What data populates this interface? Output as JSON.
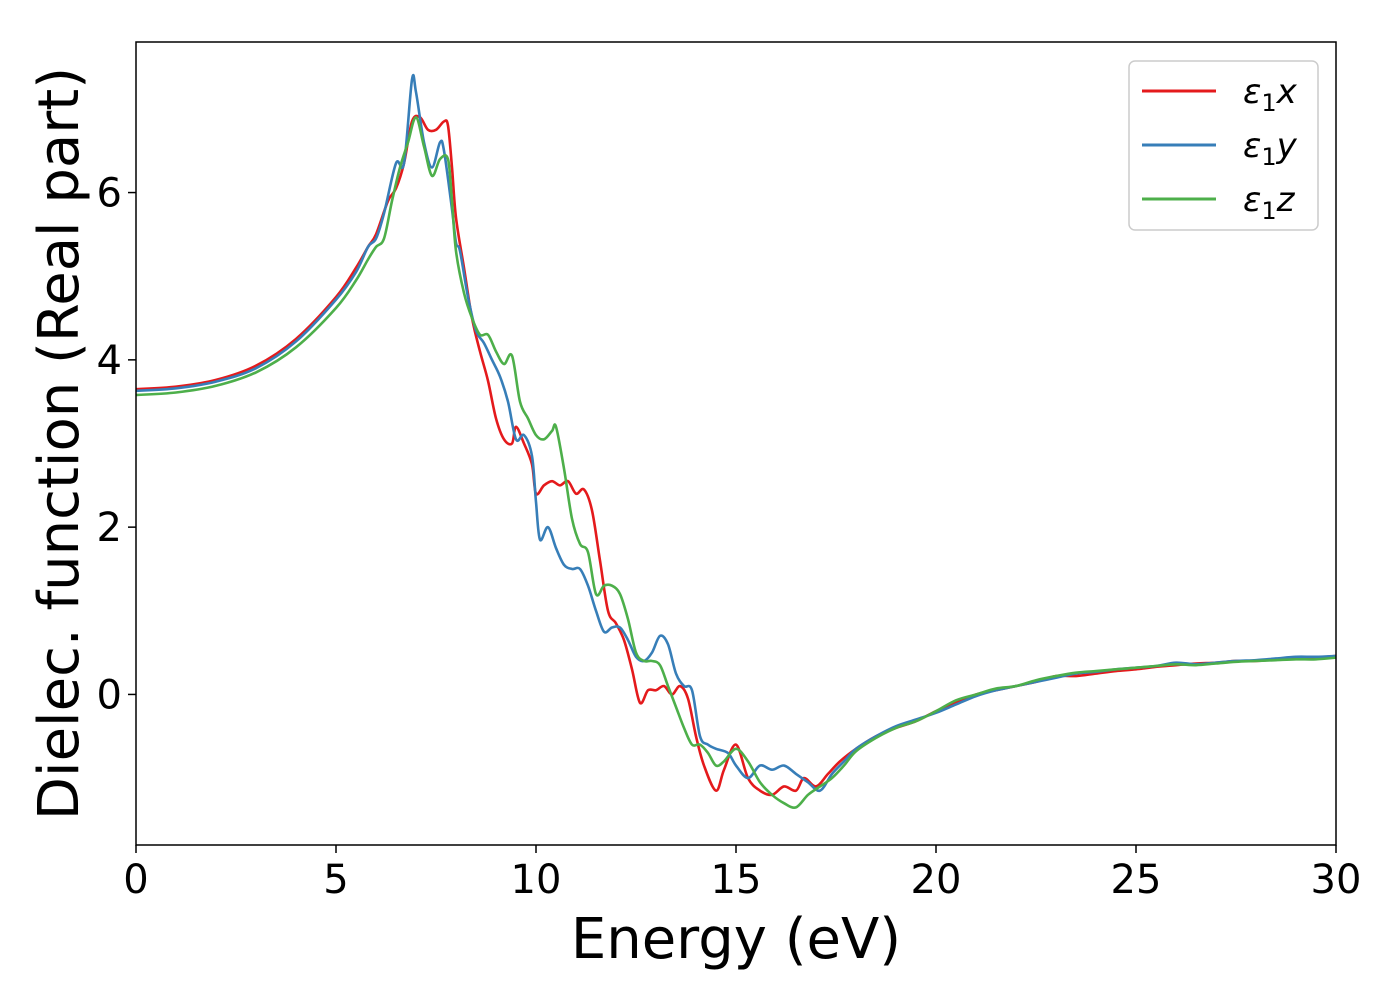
{
  "chart_data": {
    "type": "line",
    "xlabel": "Energy (eV)",
    "ylabel": "Dielec. function (Real part)",
    "xlim": [
      0,
      30
    ],
    "ylim": [
      -1.8,
      7.8
    ],
    "xticks": [
      0,
      5,
      10,
      15,
      20,
      25,
      30
    ],
    "yticks": [
      0,
      2,
      4,
      6
    ],
    "grid": false,
    "legend_position": "top-right",
    "series": [
      {
        "name": "ε₁x",
        "legend_main": "ε",
        "legend_sub": "1",
        "legend_var": "x",
        "color": "#e41a1c",
        "points": [
          [
            0,
            3.65
          ],
          [
            1,
            3.68
          ],
          [
            2,
            3.76
          ],
          [
            3,
            3.93
          ],
          [
            4,
            4.25
          ],
          [
            5,
            4.75
          ],
          [
            5.5,
            5.1
          ],
          [
            5.8,
            5.35
          ],
          [
            6.0,
            5.5
          ],
          [
            6.3,
            5.9
          ],
          [
            6.5,
            6.05
          ],
          [
            6.7,
            6.35
          ],
          [
            6.9,
            6.85
          ],
          [
            7.1,
            6.9
          ],
          [
            7.3,
            6.75
          ],
          [
            7.5,
            6.75
          ],
          [
            7.7,
            6.85
          ],
          [
            7.8,
            6.8
          ],
          [
            7.9,
            6.3
          ],
          [
            8.0,
            5.7
          ],
          [
            8.2,
            5.1
          ],
          [
            8.4,
            4.5
          ],
          [
            8.6,
            4.1
          ],
          [
            8.8,
            3.75
          ],
          [
            9.0,
            3.3
          ],
          [
            9.2,
            3.05
          ],
          [
            9.4,
            3.0
          ],
          [
            9.5,
            3.2
          ],
          [
            9.7,
            3.0
          ],
          [
            9.9,
            2.75
          ],
          [
            10.0,
            2.4
          ],
          [
            10.2,
            2.5
          ],
          [
            10.4,
            2.55
          ],
          [
            10.6,
            2.5
          ],
          [
            10.8,
            2.55
          ],
          [
            11.0,
            2.4
          ],
          [
            11.2,
            2.45
          ],
          [
            11.4,
            2.2
          ],
          [
            11.6,
            1.6
          ],
          [
            11.8,
            1.0
          ],
          [
            12.0,
            0.85
          ],
          [
            12.2,
            0.65
          ],
          [
            12.4,
            0.3
          ],
          [
            12.6,
            -0.1
          ],
          [
            12.8,
            0.05
          ],
          [
            13.0,
            0.05
          ],
          [
            13.2,
            0.1
          ],
          [
            13.4,
            0.0
          ],
          [
            13.6,
            0.1
          ],
          [
            13.8,
            -0.05
          ],
          [
            14.0,
            -0.5
          ],
          [
            14.2,
            -0.85
          ],
          [
            14.5,
            -1.15
          ],
          [
            14.7,
            -0.9
          ],
          [
            15.0,
            -0.6
          ],
          [
            15.3,
            -1.0
          ],
          [
            15.6,
            -1.15
          ],
          [
            15.9,
            -1.2
          ],
          [
            16.2,
            -1.1
          ],
          [
            16.5,
            -1.15
          ],
          [
            16.7,
            -1.0
          ],
          [
            17.0,
            -1.1
          ],
          [
            17.3,
            -0.95
          ],
          [
            17.6,
            -0.8
          ],
          [
            18.0,
            -0.65
          ],
          [
            18.5,
            -0.5
          ],
          [
            19.0,
            -0.4
          ],
          [
            19.5,
            -0.32
          ],
          [
            20.0,
            -0.2
          ],
          [
            20.5,
            -0.1
          ],
          [
            21,
            0.0
          ],
          [
            21.5,
            0.05
          ],
          [
            22,
            0.1
          ],
          [
            22.5,
            0.15
          ],
          [
            23,
            0.22
          ],
          [
            23.5,
            0.22
          ],
          [
            24,
            0.25
          ],
          [
            24.5,
            0.28
          ],
          [
            25,
            0.3
          ],
          [
            25.5,
            0.33
          ],
          [
            26,
            0.35
          ],
          [
            26.5,
            0.37
          ],
          [
            27,
            0.38
          ],
          [
            27.5,
            0.4
          ],
          [
            28,
            0.4
          ],
          [
            28.5,
            0.42
          ],
          [
            29,
            0.44
          ],
          [
            29.5,
            0.44
          ],
          [
            30,
            0.46
          ]
        ]
      },
      {
        "name": "ε₁y",
        "legend_main": "ε",
        "legend_sub": "1",
        "legend_var": "y",
        "color": "#377eb8",
        "points": [
          [
            0,
            3.63
          ],
          [
            1,
            3.66
          ],
          [
            2,
            3.74
          ],
          [
            3,
            3.9
          ],
          [
            4,
            4.22
          ],
          [
            5,
            4.72
          ],
          [
            5.5,
            5.05
          ],
          [
            5.8,
            5.35
          ],
          [
            6.0,
            5.45
          ],
          [
            6.2,
            5.75
          ],
          [
            6.5,
            6.35
          ],
          [
            6.7,
            6.35
          ],
          [
            6.9,
            7.35
          ],
          [
            7.0,
            7.2
          ],
          [
            7.2,
            6.6
          ],
          [
            7.4,
            6.3
          ],
          [
            7.6,
            6.6
          ],
          [
            7.7,
            6.5
          ],
          [
            7.9,
            5.8
          ],
          [
            8.0,
            5.4
          ],
          [
            8.1,
            5.3
          ],
          [
            8.3,
            4.75
          ],
          [
            8.5,
            4.35
          ],
          [
            8.7,
            4.2
          ],
          [
            8.9,
            4.0
          ],
          [
            9.1,
            3.8
          ],
          [
            9.3,
            3.5
          ],
          [
            9.5,
            3.05
          ],
          [
            9.7,
            3.1
          ],
          [
            9.9,
            2.85
          ],
          [
            10.0,
            2.3
          ],
          [
            10.1,
            1.85
          ],
          [
            10.3,
            2.0
          ],
          [
            10.5,
            1.75
          ],
          [
            10.7,
            1.55
          ],
          [
            10.9,
            1.5
          ],
          [
            11.1,
            1.5
          ],
          [
            11.3,
            1.3
          ],
          [
            11.5,
            1.0
          ],
          [
            11.7,
            0.75
          ],
          [
            11.9,
            0.8
          ],
          [
            12.1,
            0.8
          ],
          [
            12.3,
            0.65
          ],
          [
            12.5,
            0.45
          ],
          [
            12.7,
            0.4
          ],
          [
            12.9,
            0.5
          ],
          [
            13.1,
            0.7
          ],
          [
            13.3,
            0.6
          ],
          [
            13.5,
            0.25
          ],
          [
            13.7,
            0.1
          ],
          [
            13.9,
            0.05
          ],
          [
            14.1,
            -0.5
          ],
          [
            14.3,
            -0.6
          ],
          [
            14.5,
            -0.65
          ],
          [
            14.8,
            -0.7
          ],
          [
            15.0,
            -0.85
          ],
          [
            15.3,
            -1.0
          ],
          [
            15.6,
            -0.85
          ],
          [
            15.9,
            -0.9
          ],
          [
            16.2,
            -0.85
          ],
          [
            16.5,
            -0.95
          ],
          [
            16.8,
            -1.05
          ],
          [
            17.1,
            -1.15
          ],
          [
            17.4,
            -0.95
          ],
          [
            17.7,
            -0.8
          ],
          [
            18.0,
            -0.65
          ],
          [
            18.5,
            -0.5
          ],
          [
            19.0,
            -0.38
          ],
          [
            19.5,
            -0.3
          ],
          [
            20.0,
            -0.22
          ],
          [
            20.5,
            -0.12
          ],
          [
            21,
            -0.02
          ],
          [
            21.5,
            0.05
          ],
          [
            22,
            0.1
          ],
          [
            22.5,
            0.15
          ],
          [
            23,
            0.2
          ],
          [
            23.5,
            0.25
          ],
          [
            24,
            0.27
          ],
          [
            24.5,
            0.3
          ],
          [
            25,
            0.32
          ],
          [
            25.5,
            0.34
          ],
          [
            26,
            0.38
          ],
          [
            26.5,
            0.36
          ],
          [
            27,
            0.38
          ],
          [
            27.5,
            0.4
          ],
          [
            28,
            0.41
          ],
          [
            28.5,
            0.43
          ],
          [
            29,
            0.45
          ],
          [
            29.5,
            0.45
          ],
          [
            30,
            0.46
          ]
        ]
      },
      {
        "name": "ε₁z",
        "legend_main": "ε",
        "legend_sub": "1",
        "legend_var": "z",
        "color": "#4daf4a",
        "points": [
          [
            0,
            3.58
          ],
          [
            1,
            3.61
          ],
          [
            2,
            3.69
          ],
          [
            3,
            3.85
          ],
          [
            4,
            4.15
          ],
          [
            5,
            4.62
          ],
          [
            5.5,
            4.95
          ],
          [
            5.8,
            5.2
          ],
          [
            6.0,
            5.35
          ],
          [
            6.2,
            5.45
          ],
          [
            6.4,
            5.9
          ],
          [
            6.6,
            6.3
          ],
          [
            6.8,
            6.6
          ],
          [
            7.0,
            6.9
          ],
          [
            7.2,
            6.55
          ],
          [
            7.4,
            6.2
          ],
          [
            7.6,
            6.4
          ],
          [
            7.8,
            6.4
          ],
          [
            7.9,
            5.9
          ],
          [
            8.0,
            5.3
          ],
          [
            8.2,
            4.8
          ],
          [
            8.4,
            4.5
          ],
          [
            8.6,
            4.3
          ],
          [
            8.8,
            4.3
          ],
          [
            9.0,
            4.1
          ],
          [
            9.2,
            3.95
          ],
          [
            9.4,
            4.05
          ],
          [
            9.6,
            3.5
          ],
          [
            9.8,
            3.3
          ],
          [
            10.0,
            3.1
          ],
          [
            10.2,
            3.05
          ],
          [
            10.4,
            3.15
          ],
          [
            10.5,
            3.2
          ],
          [
            10.7,
            2.7
          ],
          [
            10.9,
            2.1
          ],
          [
            11.1,
            1.8
          ],
          [
            11.3,
            1.7
          ],
          [
            11.5,
            1.2
          ],
          [
            11.7,
            1.3
          ],
          [
            11.9,
            1.3
          ],
          [
            12.1,
            1.2
          ],
          [
            12.3,
            0.9
          ],
          [
            12.5,
            0.5
          ],
          [
            12.7,
            0.4
          ],
          [
            12.9,
            0.4
          ],
          [
            13.1,
            0.35
          ],
          [
            13.3,
            0.1
          ],
          [
            13.5,
            -0.15
          ],
          [
            13.7,
            -0.4
          ],
          [
            13.9,
            -0.6
          ],
          [
            14.1,
            -0.6
          ],
          [
            14.3,
            -0.7
          ],
          [
            14.5,
            -0.85
          ],
          [
            14.7,
            -0.8
          ],
          [
            15.0,
            -0.65
          ],
          [
            15.3,
            -0.8
          ],
          [
            15.6,
            -1.05
          ],
          [
            15.9,
            -1.2
          ],
          [
            16.2,
            -1.3
          ],
          [
            16.5,
            -1.35
          ],
          [
            16.8,
            -1.2
          ],
          [
            17.1,
            -1.1
          ],
          [
            17.4,
            -1.0
          ],
          [
            17.7,
            -0.85
          ],
          [
            18.0,
            -0.68
          ],
          [
            18.5,
            -0.52
          ],
          [
            19.0,
            -0.4
          ],
          [
            19.5,
            -0.32
          ],
          [
            20.0,
            -0.2
          ],
          [
            20.5,
            -0.07
          ],
          [
            21,
            0.0
          ],
          [
            21.5,
            0.07
          ],
          [
            22,
            0.1
          ],
          [
            22.5,
            0.17
          ],
          [
            23,
            0.22
          ],
          [
            23.5,
            0.26
          ],
          [
            24,
            0.28
          ],
          [
            24.5,
            0.3
          ],
          [
            25,
            0.32
          ],
          [
            25.5,
            0.34
          ],
          [
            26,
            0.36
          ],
          [
            26.5,
            0.35
          ],
          [
            27,
            0.37
          ],
          [
            27.5,
            0.39
          ],
          [
            28,
            0.4
          ],
          [
            28.5,
            0.41
          ],
          [
            29,
            0.42
          ],
          [
            29.5,
            0.42
          ],
          [
            30,
            0.44
          ]
        ]
      }
    ]
  }
}
